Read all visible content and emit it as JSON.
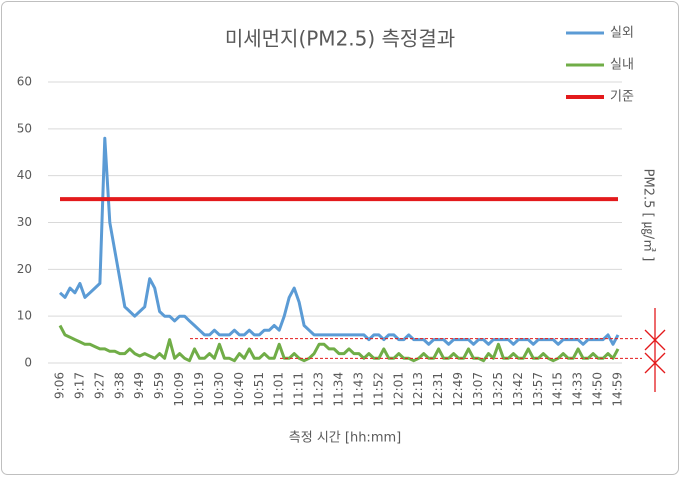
{
  "chart_data": {
    "type": "line",
    "title": "미세먼지(PM2.5) 측정결과",
    "x_label": "측정 시간 [hh:mm]",
    "y_label": "PM2.5 [ ㎍/㎥ ]",
    "categories": [
      "9:06",
      null,
      null,
      null,
      "9:17",
      null,
      null,
      null,
      "9:27",
      null,
      null,
      null,
      "9:38",
      null,
      null,
      null,
      "9:49",
      null,
      null,
      null,
      "9:59",
      null,
      null,
      null,
      "10:09",
      null,
      null,
      null,
      "10:19",
      null,
      null,
      null,
      "10:30",
      null,
      null,
      null,
      "10:40",
      null,
      null,
      null,
      "10:51",
      null,
      null,
      null,
      "11:01",
      null,
      null,
      null,
      "11:11",
      null,
      null,
      null,
      "11:23",
      null,
      null,
      null,
      "11:34",
      null,
      null,
      null,
      "11:43",
      null,
      null,
      null,
      "11:52",
      null,
      null,
      null,
      "12:01",
      null,
      null,
      null,
      "12:13",
      null,
      null,
      null,
      "12:31",
      null,
      null,
      null,
      "12:49",
      null,
      null,
      null,
      "13:07",
      null,
      null,
      null,
      "13:25",
      null,
      null,
      null,
      "13:42",
      null,
      null,
      null,
      "13:57",
      null,
      null,
      null,
      "14:15",
      null,
      null,
      null,
      "14:33",
      null,
      null,
      null,
      "14:50",
      null,
      null,
      null,
      "14:59"
    ],
    "series": [
      {
        "name": "실외",
        "color": "#5b9bd5",
        "width": 3,
        "values": [
          15,
          14,
          16,
          15,
          17,
          14,
          15,
          16,
          17,
          48,
          30,
          24,
          18,
          12,
          11,
          10,
          11,
          12,
          18,
          16,
          11,
          10,
          10,
          9,
          10,
          10,
          9,
          8,
          7,
          6,
          6,
          7,
          6,
          6,
          6,
          7,
          6,
          6,
          7,
          6,
          6,
          7,
          7,
          8,
          7,
          10,
          14,
          16,
          13,
          8,
          7,
          6,
          6,
          6,
          6,
          6,
          6,
          6,
          6,
          6,
          6,
          6,
          5,
          6,
          6,
          5,
          6,
          6,
          5,
          5,
          6,
          5,
          5,
          5,
          4,
          5,
          5,
          5,
          4,
          5,
          5,
          5,
          5,
          4,
          5,
          5,
          4,
          5,
          5,
          5,
          5,
          4,
          5,
          5,
          5,
          4,
          5,
          5,
          5,
          5,
          4,
          5,
          5,
          5,
          5,
          4,
          5,
          5,
          5,
          5,
          6,
          4,
          6
        ]
      },
      {
        "name": "실내",
        "color": "#70ad47",
        "width": 3,
        "values": [
          8,
          6,
          5.5,
          5,
          4.5,
          4,
          4,
          3.5,
          3,
          3,
          2.5,
          2.5,
          2,
          2,
          3,
          2,
          1.5,
          2,
          1.5,
          1,
          2,
          1,
          5,
          1,
          2,
          1,
          0.5,
          3,
          1,
          1,
          2,
          1,
          4,
          1,
          1,
          0.5,
          2,
          1,
          3,
          1,
          1,
          2,
          1,
          1,
          4,
          1,
          1,
          2,
          1,
          0.5,
          1,
          2,
          4,
          4,
          3,
          3,
          2,
          2,
          3,
          2,
          2,
          1,
          2,
          1,
          1,
          3,
          1,
          1,
          2,
          1,
          1,
          0.5,
          1,
          2,
          1,
          1,
          3,
          1,
          1,
          2,
          1,
          1,
          3,
          1,
          1,
          0.5,
          2,
          1,
          4,
          1,
          1,
          2,
          1,
          1,
          3,
          1,
          1,
          2,
          1,
          0.5,
          1,
          2,
          1,
          1,
          3,
          1,
          1,
          2,
          1,
          1,
          2,
          1,
          3
        ]
      },
      {
        "name": "기준",
        "color": "#e31a1c",
        "width": 4,
        "values": [
          35,
          35,
          35,
          35,
          35,
          35,
          35,
          35,
          35,
          35,
          35,
          35,
          35,
          35,
          35,
          35,
          35,
          35,
          35,
          35,
          35,
          35,
          35,
          35,
          35,
          35,
          35,
          35,
          35,
          35,
          35,
          35,
          35,
          35,
          35,
          35,
          35,
          35,
          35,
          35,
          35,
          35,
          35,
          35,
          35,
          35,
          35,
          35,
          35,
          35,
          35,
          35,
          35,
          35,
          35,
          35,
          35,
          35,
          35,
          35,
          35,
          35,
          35,
          35,
          35,
          35,
          35,
          35,
          35,
          35,
          35,
          35,
          35,
          35,
          35,
          35,
          35,
          35,
          35,
          35,
          35,
          35,
          35,
          35,
          35,
          35,
          35,
          35,
          35,
          35,
          35,
          35,
          35,
          35,
          35,
          35,
          35,
          35,
          35,
          35,
          35,
          35,
          35,
          35,
          35,
          35,
          35,
          35,
          35,
          35,
          35,
          35,
          35
        ]
      }
    ],
    "dashed_lines": [
      5.2,
      1
    ],
    "ylim": [
      0,
      60
    ],
    "yticks": [
      0,
      10,
      20,
      30,
      40,
      50,
      60
    ],
    "grid": true,
    "legend": "top-right"
  }
}
